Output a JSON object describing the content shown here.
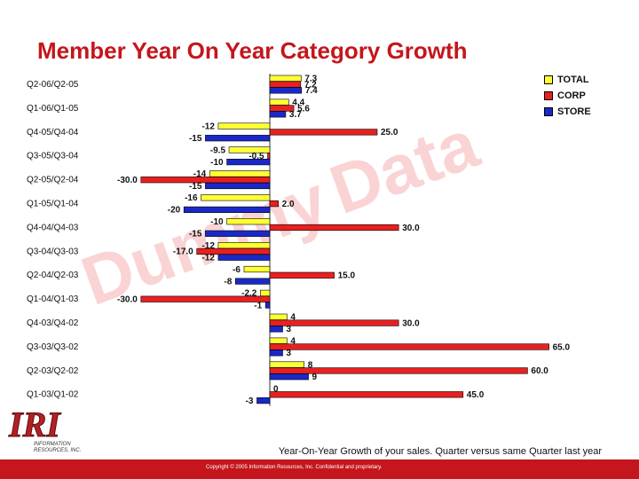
{
  "title": "Member Year On Year Category Growth",
  "watermark": {
    "word1": "Dummy",
    "word2": "Data"
  },
  "legend": [
    {
      "name": "TOTAL",
      "color": "#ffff33"
    },
    {
      "name": "CORP",
      "color": "#e82020"
    },
    {
      "name": "STORE",
      "color": "#1b28c8"
    }
  ],
  "footnote": "Year-On-Year Growth of your sales. Quarter versus same Quarter last year",
  "copyright": "Copyright © 2005 Information Resources, Inc. Confidential and proprietary.",
  "logo": {
    "letters": "IRI",
    "line1": "INFORMATION",
    "line2": "RESOURCES, INC."
  },
  "chart_data": {
    "type": "bar",
    "orientation": "horizontal",
    "title": "Member Year On Year Category Growth",
    "categories": [
      "Q2-06/Q2-05",
      "Q1-06/Q1-05",
      "Q4-05/Q4-04",
      "Q3-05/Q3-04",
      "Q2-05/Q2-04",
      "Q1-05/Q1-04",
      "Q4-04/Q4-03",
      "Q3-04/Q3-03",
      "Q2-04/Q2-03",
      "Q1-04/Q1-03",
      "Q4-03/Q4-02",
      "Q3-03/Q3-02",
      "Q2-03/Q2-02",
      "Q1-03/Q1-02"
    ],
    "series": [
      {
        "name": "TOTAL",
        "color": "#ffff33",
        "values": [
          7.3,
          4.4,
          -12,
          -9.5,
          -14,
          -16,
          -10,
          -12,
          -6,
          -2.2,
          4,
          4,
          8,
          0
        ],
        "labels": [
          "7.3",
          "4.4",
          "-12",
          "-9.5",
          "-14",
          "-16",
          "-10",
          "-12",
          "-6",
          "-2.2",
          "4",
          "4",
          "8",
          "0"
        ]
      },
      {
        "name": "CORP",
        "color": "#e82020",
        "values": [
          7.2,
          5.6,
          25.0,
          -0.5,
          -30.0,
          2.0,
          30.0,
          -17.0,
          15.0,
          -30.0,
          30.0,
          65.0,
          60.0,
          45.0
        ],
        "labels": [
          "7.2",
          "5.6",
          "25.0",
          "-0.5",
          "-30.0",
          "2.0",
          "30.0",
          "-17.0",
          "15.0",
          "-30.0",
          "30.0",
          "65.0",
          "60.0",
          "45.0"
        ]
      },
      {
        "name": "STORE",
        "color": "#1b28c8",
        "values": [
          7.4,
          3.7,
          -15,
          -10,
          -15,
          -20,
          -15,
          -12,
          -8,
          -1,
          3,
          3,
          9,
          -3
        ],
        "labels": [
          "7.4",
          "3.7",
          "-15",
          "-10",
          "-15",
          "-20",
          "-15",
          "-12",
          "-8",
          "-1",
          "3",
          "3",
          "9",
          "-3"
        ]
      }
    ],
    "legend": "right"
  }
}
